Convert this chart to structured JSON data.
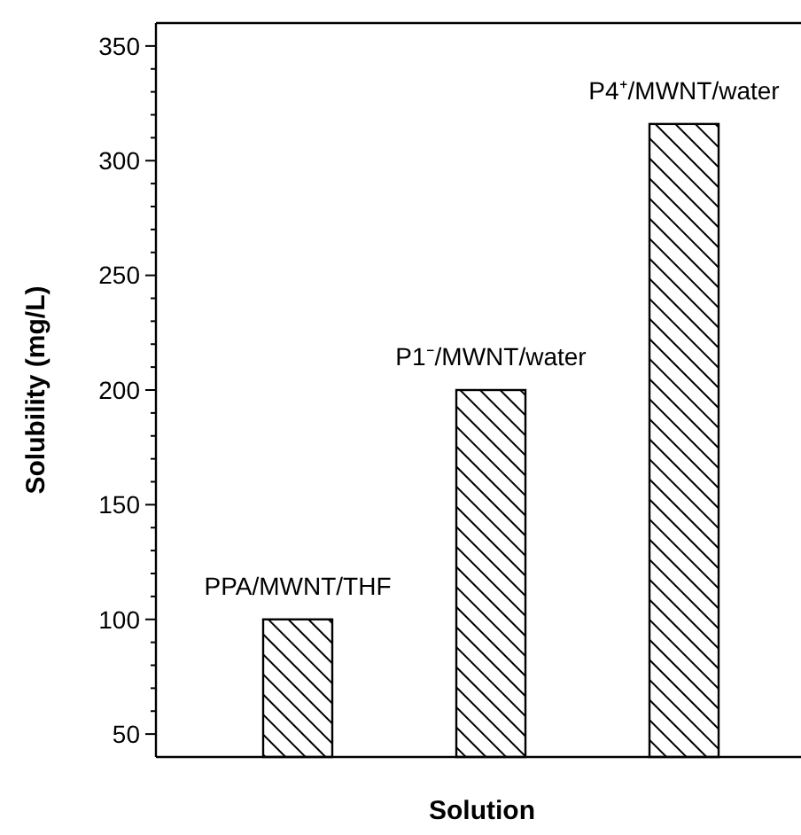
{
  "chart_data": {
    "type": "bar",
    "xlabel": "Solution",
    "ylabel": "Solubility (mg/L)",
    "categories": [
      "PPA/MWNT/THF",
      "P1⁻/MWNT/water",
      "P4⁺/MWNT/water"
    ],
    "values": [
      100,
      200,
      316
    ],
    "color": "#000000",
    "ylim": [
      40,
      360
    ],
    "yticks": [
      50,
      {
        "value": 60,
        "label": null
      },
      {
        "value": 70,
        "label": null
      },
      {
        "value": 80,
        "label": null
      },
      {
        "value": 90,
        "label": null
      },
      100,
      {
        "value": 110,
        "label": null
      },
      {
        "value": 120,
        "label": null
      },
      {
        "value": 130,
        "label": null
      },
      {
        "value": 140,
        "label": null
      },
      150,
      {
        "value": 160,
        "label": null
      },
      {
        "value": 170,
        "label": null
      },
      {
        "value": 180,
        "label": null
      },
      {
        "value": 190,
        "label": null
      },
      200,
      {
        "value": 210,
        "label": null
      },
      {
        "value": 220,
        "label": null
      },
      {
        "value": 230,
        "label": null
      },
      {
        "value": 240,
        "label": null
      },
      250,
      {
        "value": 260,
        "label": null
      },
      {
        "value": 270,
        "label": null
      },
      {
        "value": 280,
        "label": null
      },
      {
        "value": 290,
        "label": null
      },
      300,
      {
        "value": 310,
        "label": null
      },
      {
        "value": 320,
        "label": null
      },
      {
        "value": 330,
        "label": null
      },
      {
        "value": 340,
        "label": null
      },
      350
    ],
    "grid": false
  }
}
